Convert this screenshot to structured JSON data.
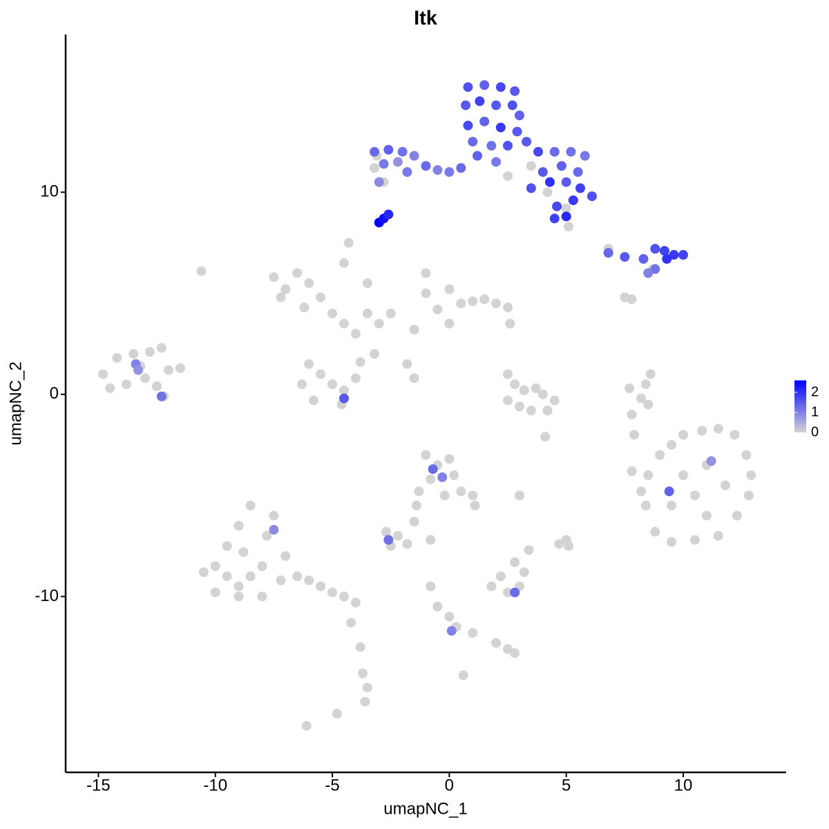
{
  "chart_data": {
    "type": "scatter",
    "title": "Itk",
    "xlabel": "umapNC_1",
    "ylabel": "umapNC_2",
    "xlim": [
      -16.4,
      14.4
    ],
    "ylim": [
      -18.7,
      17.8
    ],
    "xticks": [
      -15,
      -10,
      -5,
      0,
      5,
      10
    ],
    "yticks": [
      -10,
      0,
      10
    ],
    "colors": [
      "#d3d3d3",
      "#0000ff"
    ],
    "colorlim": [
      0,
      2.6
    ],
    "colorticks": [
      0,
      1,
      2
    ],
    "x": [
      -14.8,
      -14.2,
      -13.5,
      -12.8,
      -12.3,
      -14.5,
      -13.8,
      -13,
      -12.5,
      -12,
      -11.5,
      -13.2,
      -12.2,
      -10.6,
      -7.5,
      -7,
      -6.5,
      -6,
      -5.5,
      -7.2,
      -6.2,
      -5,
      -4.5,
      -4,
      -3.5,
      -3,
      -2.5,
      -4.5,
      -4.3,
      -3.5,
      -6,
      -5.5,
      -5,
      -4.5,
      -4,
      -3.8,
      -6.3,
      -5.8,
      -4.6,
      -3.2,
      -1.8,
      -1.5,
      -1,
      -1,
      0,
      0.5,
      1,
      1.5,
      2,
      2.5,
      -0.5,
      0,
      -1.5,
      2.6,
      -10.5,
      -10,
      -9.5,
      -9,
      -8.5,
      -8,
      -9.5,
      -9,
      -8.5,
      -8.8,
      -7.8,
      -7.5,
      -7,
      -7.2,
      -6.5,
      -6,
      -5.5,
      -5,
      -4.5,
      -4,
      -10,
      -9,
      -8,
      -4.2,
      -3.8,
      -3.7,
      -3.5,
      -3.6,
      -6.1,
      -4.8,
      -1,
      -0.5,
      0,
      -0.8,
      0.2,
      0.5,
      -0.2,
      1,
      1.1,
      -1.3,
      -1.4,
      -1.5,
      -2.7,
      -2.2,
      -2.5,
      -1.8,
      -0.8,
      -0.8,
      -0.5,
      0,
      0.3,
      1,
      2,
      2.5,
      2.8,
      0.6,
      2.5,
      2.8,
      3.2,
      3.7,
      4,
      2.5,
      3,
      3.5,
      4.2,
      4.5,
      1.8,
      2.2,
      2.5,
      3,
      3.2,
      2.8,
      3.4,
      5,
      5.1,
      4.7,
      3,
      4.1,
      8.5,
      9,
      9.5,
      10,
      10.8,
      11.5,
      12.2,
      12.7,
      12.9,
      12.8,
      12.3,
      11.5,
      10.5,
      9.5,
      8.8,
      8.4,
      10,
      11,
      10.5,
      11.8,
      9.5,
      11,
      8.2,
      7.8,
      8.6,
      8.4,
      8.2,
      7.8,
      7.9,
      8.5,
      7.7,
      -3.2,
      -2.8,
      -3.1,
      3.5,
      2.5,
      5,
      4.2,
      6.8,
      8.7,
      7.5,
      7.8,
      5.1,
      -13.4,
      -13.3,
      -12.3,
      -0.7,
      -0.3,
      -2.6,
      -7.5,
      9.4,
      11.2,
      2.8,
      -4.5,
      0.1,
      -3.2,
      -2.6,
      -2,
      -1.5,
      -1,
      -0.5,
      0,
      0.5,
      -2.8,
      -3,
      -2.2,
      -1.8,
      0.8,
      1.5,
      2.2,
      2.8,
      0.7,
      1.3,
      2,
      2.7,
      3,
      0.8,
      1.5,
      2.2,
      2.9,
      1,
      1.8,
      2.5,
      1.2,
      2,
      3.3,
      3.8,
      4.5,
      5.2,
      5.8,
      4,
      4.8,
      5.5,
      4.3,
      5,
      5.6,
      6.1,
      5.3,
      4.6,
      5,
      4.5,
      3.5,
      6.8,
      7.5,
      8.3,
      8.8,
      9.2,
      9.6,
      10,
      9.3,
      8.8,
      8.5,
      -3,
      -2.8,
      -2.6
    ],
    "y": [
      1,
      1.8,
      2,
      2.1,
      2.3,
      0.3,
      0.5,
      0.8,
      0.4,
      1.2,
      1.3,
      1.4,
      -0.1,
      6.1,
      5.8,
      5.2,
      6,
      5.5,
      4.8,
      4.8,
      4.3,
      4,
      3.5,
      3,
      4,
      3.5,
      4,
      6.5,
      7.5,
      5.5,
      1.5,
      1,
      0.5,
      0.2,
      0.8,
      1.6,
      0.5,
      -0.3,
      -0.5,
      2,
      1.5,
      0.8,
      6,
      5,
      5.2,
      4.5,
      4.6,
      4.7,
      4.5,
      4.3,
      4.2,
      3.5,
      3.2,
      3.5,
      -8.8,
      -8.5,
      -9,
      -9.5,
      -9,
      -8.5,
      -7.5,
      -6.5,
      -5.5,
      -7.8,
      -7,
      -6,
      -8,
      -9.2,
      -9,
      -9.2,
      -9.5,
      -9.8,
      -10,
      -10.3,
      -9.8,
      -10,
      -10,
      -11.3,
      -12.5,
      -13.8,
      -14.5,
      -15.2,
      -16.4,
      -15.8,
      -3,
      -3.5,
      -3.2,
      -4.2,
      -4,
      -4.8,
      -5,
      -5,
      -5.5,
      -4.8,
      -5.5,
      -6.3,
      -6.8,
      -7,
      -7.5,
      -7.4,
      -7.2,
      -9.5,
      -10.5,
      -11,
      -11.5,
      -11.8,
      -12.3,
      -12.6,
      -12.8,
      -13.9,
      1,
      0.5,
      0.2,
      0.3,
      0,
      -0.3,
      -0.6,
      -0.8,
      -0.8,
      -0.3,
      -9.5,
      -9,
      -9.8,
      -9.5,
      -8.8,
      -8.3,
      -7.7,
      -7.2,
      -7.5,
      -7.4,
      -5,
      -2.1,
      -4,
      -3,
      -2.5,
      -2,
      -1.8,
      -1.7,
      -2,
      -3,
      -4,
      -5,
      -6,
      -7,
      -7.2,
      -7.3,
      -6.8,
      -5.5,
      -4,
      -3.5,
      -5,
      -4.5,
      -5.5,
      -6,
      -4.8,
      -3.8,
      1,
      0.5,
      -0.2,
      -1,
      -2,
      -0.5,
      0.3,
      11.2,
      10.5,
      11.8,
      11.3,
      10.8,
      9.2,
      10,
      7.2,
      6.2,
      4.8,
      4.7,
      8.3,
      1.5,
      1.2,
      -0.1,
      -3.7,
      -4.1,
      -7.2,
      -6.7,
      -4.8,
      -3.3,
      -9.8,
      -0.2,
      -11.7,
      12,
      12.1,
      12,
      11.8,
      11.3,
      11.1,
      11,
      11.2,
      11.4,
      10.5,
      11.5,
      11,
      15.2,
      15.3,
      15.2,
      15,
      14.3,
      14.5,
      14.3,
      14.3,
      13.8,
      13.3,
      13.5,
      13.2,
      13,
      12.5,
      12.3,
      12.3,
      11.8,
      11.5,
      12.5,
      12,
      12,
      12,
      11.8,
      11,
      11.3,
      11,
      10.5,
      10.5,
      10.2,
      9.8,
      9.6,
      9.3,
      8.8,
      8.7,
      10.2,
      7,
      6.8,
      6.7,
      7.2,
      7.1,
      6.9,
      6.9,
      6.7,
      6.2,
      6,
      8.5,
      8.7,
      8.9
    ],
    "expression": [
      0,
      0,
      0,
      0,
      0,
      0,
      0,
      0,
      0,
      0,
      0,
      0,
      0,
      0,
      0,
      0,
      0,
      0,
      0,
      0,
      0,
      0,
      0,
      0,
      0,
      0,
      0,
      0,
      0,
      0,
      0,
      0,
      0,
      0,
      0,
      0,
      0,
      0,
      0,
      0,
      0,
      0,
      0,
      0,
      0,
      0,
      0,
      0,
      0,
      0,
      0,
      0,
      0,
      0,
      0,
      0,
      0,
      0,
      0,
      0,
      0,
      0,
      0,
      0,
      0,
      0,
      0,
      0,
      0,
      0,
      0,
      0,
      0,
      0,
      0,
      0,
      0,
      0,
      0,
      0,
      0,
      0,
      0,
      0,
      0,
      0,
      0,
      0,
      0,
      0,
      0,
      0,
      0,
      0,
      0,
      0,
      0,
      0,
      0,
      0,
      0,
      0,
      0,
      0,
      0,
      0,
      0,
      0,
      0,
      0,
      0,
      0,
      0,
      0,
      0,
      0,
      0,
      0,
      0,
      0,
      0,
      0,
      0,
      0,
      0,
      0,
      0,
      0,
      0,
      0,
      0,
      0,
      0,
      0,
      0,
      0,
      0,
      0,
      0,
      0,
      0,
      0,
      0,
      0,
      0,
      0,
      0,
      0,
      0,
      0,
      0,
      0,
      0,
      0,
      0,
      0,
      0,
      0,
      0,
      0,
      0,
      0,
      0,
      0,
      0,
      0,
      0,
      0,
      0,
      0,
      0,
      0,
      0,
      0,
      0,
      1,
      0.8,
      1.2,
      1.3,
      1,
      1.2,
      0.9,
      1.4,
      0.8,
      1.3,
      1.5,
      1,
      1.3,
      1.4,
      1.2,
      1,
      1.3,
      1,
      1.1,
      1.3,
      1.1,
      0.9,
      0.8,
      1.1,
      1.6,
      1.4,
      1.7,
      1.5,
      1.5,
      1.8,
      1.5,
      1.6,
      1.4,
      1.7,
      1.4,
      1.9,
      1.5,
      1.3,
      1.2,
      1.6,
      1.4,
      1.1,
      1.5,
      1.7,
      1.3,
      1.2,
      1.1,
      1.5,
      1.4,
      1.3,
      2,
      1.5,
      1.8,
      1.6,
      1.9,
      1.7,
      2.1,
      1.8,
      1.6,
      1.3,
      1.5,
      1.4,
      1.6,
      1.8,
      1.9,
      1.8,
      2,
      1.2,
      1,
      2.6,
      2.4,
      2.1
    ]
  }
}
